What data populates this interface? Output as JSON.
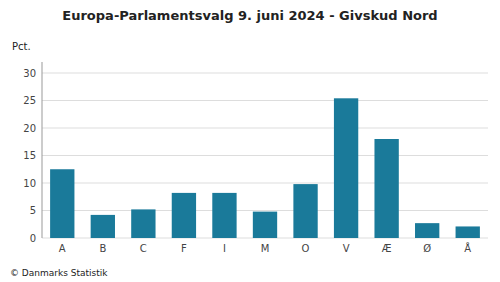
{
  "chart_data": {
    "type": "bar",
    "title": "Europa-Parlamentsvalg 9. juni 2024 - Givskud Nord",
    "ylabel": "Pct.",
    "footer": "© Danmarks Statistik",
    "categories": [
      "A",
      "B",
      "C",
      "F",
      "I",
      "M",
      "O",
      "V",
      "Æ",
      "Ø",
      "Å"
    ],
    "values": [
      12.5,
      4.2,
      5.2,
      8.2,
      8.2,
      4.8,
      9.8,
      25.4,
      18.0,
      2.7,
      2.1
    ],
    "color": "#1a7a9a",
    "ylim": [
      0,
      32
    ],
    "yticks": [
      0,
      5,
      10,
      15,
      20,
      25,
      30
    ],
    "grid": true
  }
}
